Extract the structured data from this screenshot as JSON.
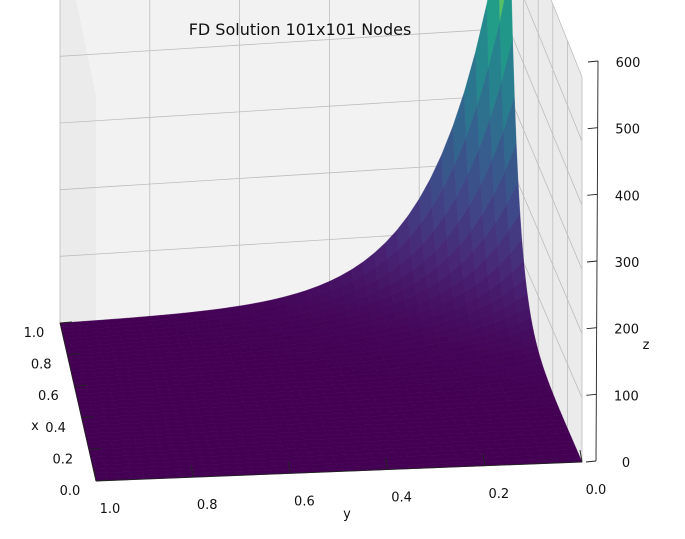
{
  "chart_data": {
    "type": "surface",
    "title": "FD Solution 101x101 Nodes",
    "xlabel": "x",
    "ylabel": "y",
    "zlabel": "z",
    "grid_nodes": [
      101,
      101
    ],
    "xlim": [
      0.0,
      1.0
    ],
    "ylim": [
      0.0,
      1.0
    ],
    "zlim": [
      0,
      600
    ],
    "x_ticks": [
      "0.0",
      "0.2",
      "0.4",
      "0.6",
      "0.8",
      "1.0"
    ],
    "y_ticks": [
      "1.0",
      "0.8",
      "0.6",
      "0.4",
      "0.2",
      "0.0"
    ],
    "z_ticks": [
      "0",
      "100",
      "200",
      "300",
      "400",
      "500",
      "600"
    ],
    "colormap": "viridis",
    "grid": true,
    "surface_corner_values": [
      {
        "x": 0.0,
        "y": 0.0,
        "z": 0
      },
      {
        "x": 0.0,
        "y": 1.0,
        "z": 0
      },
      {
        "x": 1.0,
        "y": 1.0,
        "z": 0
      },
      {
        "x": 1.0,
        "y": 0.0,
        "z": 620
      }
    ]
  }
}
